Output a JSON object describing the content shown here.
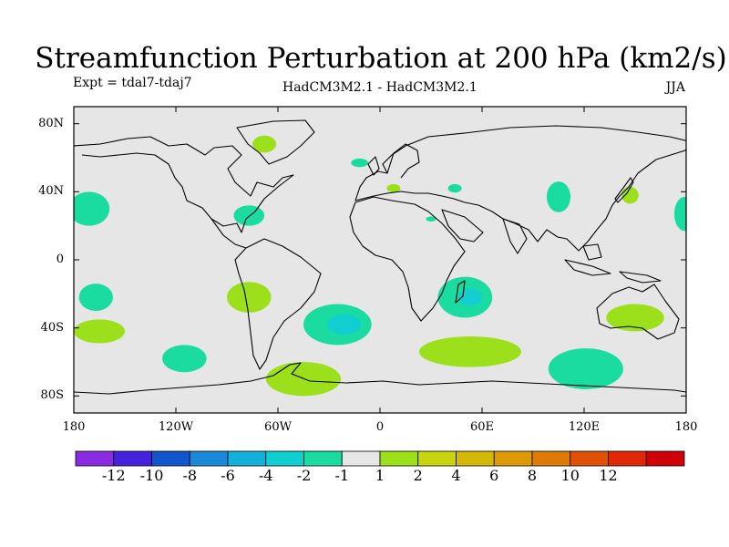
{
  "title": "Streamfunction Perturbation at 200 hPa (km2/s)",
  "subtitle_left": "Expt = tdal7-tdaj7",
  "subtitle_center": "HadCM3M2.1 - HadCM3M2.1",
  "subtitle_right": "JJA",
  "map": {
    "projection": "cylindrical-equidistant",
    "ocean_color": "#e6e6e6",
    "coast_color": "#000000",
    "lon_range": [
      -180,
      180
    ],
    "lat_range": [
      -90,
      90
    ],
    "y_ticks": [
      {
        "lat": 80,
        "label": "80N"
      },
      {
        "lat": 40,
        "label": "40N"
      },
      {
        "lat": 0,
        "label": "0"
      },
      {
        "lat": -40,
        "label": "40S"
      },
      {
        "lat": -80,
        "label": "80S"
      }
    ],
    "x_ticks": [
      {
        "lon": -180,
        "label": "180"
      },
      {
        "lon": -120,
        "label": "120W"
      },
      {
        "lon": -60,
        "label": "60W"
      },
      {
        "lon": 0,
        "label": "0"
      },
      {
        "lon": 60,
        "label": "60E"
      },
      {
        "lon": 120,
        "label": "120E"
      },
      {
        "lon": 180,
        "label": "180"
      }
    ]
  },
  "colorbar": {
    "colors": [
      "#8a2be2",
      "#4422dd",
      "#1155cc",
      "#1a8ad8",
      "#14b0dc",
      "#11cfd0",
      "#1adba0",
      "#e6e6e6",
      "#9be01a",
      "#c8d40e",
      "#d4b808",
      "#de9a06",
      "#e07a06",
      "#e05106",
      "#e02808",
      "#d00008"
    ],
    "labels": [
      "-12",
      "-10",
      "-8",
      "-6",
      "-4",
      "-2",
      "-1",
      "1",
      "2",
      "4",
      "6",
      "8",
      "10",
      "12"
    ]
  },
  "anomalies": [
    {
      "level": 2,
      "lon": -68,
      "lat": 68,
      "rx": 7,
      "ry": 5
    },
    {
      "level": -1,
      "lon": -12,
      "lat": 57,
      "rx": 5,
      "ry": 2.5
    },
    {
      "level": 2,
      "lon": 8,
      "lat": 42,
      "rx": 4,
      "ry": 2.5
    },
    {
      "level": -1,
      "lon": 30,
      "lat": 24,
      "rx": 3,
      "ry": 1.5
    },
    {
      "level": -1,
      "lon": 44,
      "lat": 42,
      "rx": 4,
      "ry": 2.5
    },
    {
      "level": -1,
      "lon": -171,
      "lat": 30,
      "rx": 12,
      "ry": 10
    },
    {
      "level": -1,
      "lon": -77,
      "lat": 26,
      "rx": 9,
      "ry": 6
    },
    {
      "level": -1,
      "lon": 105,
      "lat": 37,
      "rx": 7,
      "ry": 9
    },
    {
      "level": 2,
      "lon": 147,
      "lat": 38,
      "rx": 5,
      "ry": 5
    },
    {
      "level": -1,
      "lon": 179,
      "lat": 27,
      "rx": 6,
      "ry": 10
    },
    {
      "level": -1,
      "lon": -167,
      "lat": -22,
      "rx": 10,
      "ry": 8
    },
    {
      "level": 2,
      "lon": -165,
      "lat": -42,
      "rx": 15,
      "ry": 7
    },
    {
      "level": 2,
      "lon": -77,
      "lat": -22,
      "rx": 13,
      "ry": 9
    },
    {
      "level": -1,
      "lon": -115,
      "lat": -58,
      "rx": 13,
      "ry": 8
    },
    {
      "level": -1,
      "lon": -25,
      "lat": -38,
      "rx": 20,
      "ry": 12
    },
    {
      "level": -2,
      "lon": -21,
      "lat": -38,
      "rx": 10,
      "ry": 6
    },
    {
      "level": -1,
      "lon": 50,
      "lat": -22,
      "rx": 16,
      "ry": 12
    },
    {
      "level": -2,
      "lon": 53,
      "lat": -22,
      "rx": 7,
      "ry": 5
    },
    {
      "level": 2,
      "lon": 53,
      "lat": -54,
      "rx": 30,
      "ry": 9
    },
    {
      "level": 2,
      "lon": -45,
      "lat": -70,
      "rx": 22,
      "ry": 10
    },
    {
      "level": -1,
      "lon": 121,
      "lat": -64,
      "rx": 22,
      "ry": 12
    },
    {
      "level": 2,
      "lon": 150,
      "lat": -34,
      "rx": 17,
      "ry": 8
    }
  ]
}
